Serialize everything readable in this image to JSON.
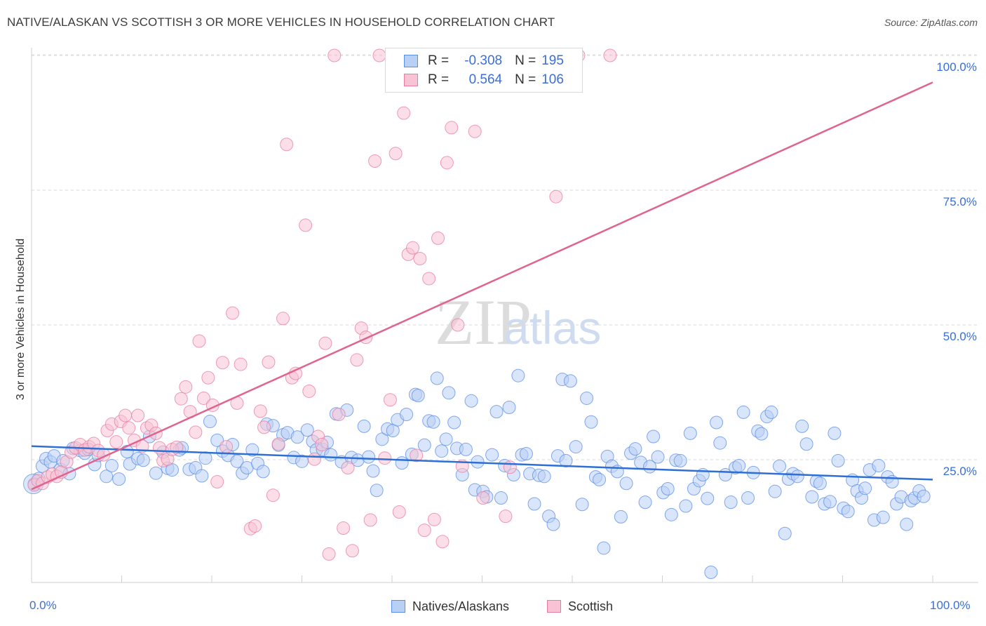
{
  "title": "NATIVE/ALASKAN VS SCOTTISH 3 OR MORE VEHICLES IN HOUSEHOLD CORRELATION CHART",
  "source": "Source: ZipAtlas.com",
  "watermark": {
    "zip": "ZIP",
    "atlas": "atlas"
  },
  "legend": {
    "series": [
      {
        "r_label": "R =",
        "r_value": "-0.308",
        "n_label": "N =",
        "n_value": "195",
        "color": "#5b8ee6",
        "fill": "#b9d0f5"
      },
      {
        "r_label": "R =",
        "r_value": "0.564",
        "n_label": "N =",
        "n_value": "106",
        "color": "#e87ca0",
        "fill": "#f8c3d4"
      }
    ]
  },
  "bottom_legend": [
    {
      "label": "Natives/Alaskans",
      "color": "#5b8ee6",
      "fill": "#b9d0f5"
    },
    {
      "label": "Scottish",
      "color": "#e87ca0",
      "fill": "#f8c3d4"
    }
  ],
  "chart_data": {
    "type": "scatter",
    "title": "NATIVE/ALASKAN VS SCOTTISH 3 OR MORE VEHICLES IN HOUSEHOLD CORRELATION CHART",
    "xlabel": "",
    "ylabel": "3 or more Vehicles in Household",
    "xlim": [
      0,
      100
    ],
    "ylim": [
      0,
      100
    ],
    "x_tick_labels": [
      "0.0%",
      "100.0%"
    ],
    "y_tick_labels": [
      "100.0%",
      "75.0%",
      "50.0%",
      "25.0%"
    ],
    "y_ticks": [
      100,
      75,
      50,
      25
    ],
    "grid": "horizontal dashed",
    "legend_position": "top-center",
    "series": [
      {
        "name": "Natives/Alaskans",
        "color": "#5b8ee6",
        "fill": "#b9d0f5",
        "trend": {
          "x": [
            0,
            100
          ],
          "y": [
            27.5,
            21.3
          ]
        },
        "points": [
          [
            0.3,
            20.5
          ],
          [
            0.8,
            21.5
          ],
          [
            1.2,
            23.8
          ],
          [
            1.6,
            25.2
          ],
          [
            2.1,
            24.6
          ],
          [
            2.5,
            25.7
          ],
          [
            3.2,
            23.2
          ],
          [
            3.5,
            24.8
          ],
          [
            4.2,
            22.4
          ],
          [
            4.6,
            27.1
          ],
          [
            5.4,
            26.7
          ],
          [
            5.9,
            26.2
          ],
          [
            6.3,
            26.9
          ],
          [
            7.0,
            24.1
          ],
          [
            7.4,
            25.8
          ],
          [
            8.3,
            21.9
          ],
          [
            8.9,
            23.9
          ],
          [
            9.7,
            21.4
          ],
          [
            10.6,
            26.5
          ],
          [
            10.9,
            24.2
          ],
          [
            11.8,
            25.2
          ],
          [
            12.4,
            24.9
          ],
          [
            13.1,
            29.3
          ],
          [
            13.8,
            22.5
          ],
          [
            14.6,
            26.4
          ],
          [
            15.1,
            23.4
          ],
          [
            15.6,
            23.1
          ],
          [
            16.4,
            26.8
          ],
          [
            16.7,
            27.2
          ],
          [
            17.5,
            23.2
          ],
          [
            18.2,
            23.5
          ],
          [
            18.9,
            22.0
          ],
          [
            19.3,
            25.3
          ],
          [
            19.8,
            32.1
          ],
          [
            20.6,
            28.6
          ],
          [
            21.2,
            26.6
          ],
          [
            21.8,
            25.8
          ],
          [
            22.3,
            27.8
          ],
          [
            22.8,
            24.7
          ],
          [
            23.4,
            22.5
          ],
          [
            23.9,
            23.5
          ],
          [
            24.5,
            26.8
          ],
          [
            25.1,
            24.3
          ],
          [
            25.7,
            22.8
          ],
          [
            26.1,
            31.6
          ],
          [
            26.8,
            31.3
          ],
          [
            27.4,
            27.7
          ],
          [
            27.9,
            29.6
          ],
          [
            28.4,
            30.0
          ],
          [
            29.1,
            25.4
          ],
          [
            29.5,
            29.2
          ],
          [
            30.0,
            24.7
          ],
          [
            30.6,
            30.5
          ],
          [
            31.2,
            28.4
          ],
          [
            31.6,
            26.8
          ],
          [
            32.3,
            26.9
          ],
          [
            32.8,
            28.2
          ],
          [
            33.2,
            25.9
          ],
          [
            33.8,
            33.5
          ],
          [
            34.4,
            24.6
          ],
          [
            35.0,
            34.2
          ],
          [
            35.5,
            25.4
          ],
          [
            36.2,
            24.9
          ],
          [
            36.9,
            31.2
          ],
          [
            37.4,
            25.5
          ],
          [
            37.9,
            22.9
          ],
          [
            38.3,
            19.3
          ],
          [
            38.9,
            28.8
          ],
          [
            39.5,
            30.7
          ],
          [
            40.1,
            30.4
          ],
          [
            40.6,
            32.4
          ],
          [
            41.1,
            24.4
          ],
          [
            41.6,
            33.4
          ],
          [
            42.2,
            26.0
          ],
          [
            42.6,
            37.1
          ],
          [
            42.9,
            36.9
          ],
          [
            43.6,
            27.7
          ],
          [
            44.1,
            32.2
          ],
          [
            44.6,
            32.0
          ],
          [
            45.0,
            40.1
          ],
          [
            45.5,
            26.6
          ],
          [
            46.0,
            28.8
          ],
          [
            46.3,
            37.4
          ],
          [
            46.9,
            31.9
          ],
          [
            47.2,
            27.1
          ],
          [
            47.8,
            22.2
          ],
          [
            48.2,
            26.9
          ],
          [
            48.8,
            35.9
          ],
          [
            49.2,
            19.4
          ],
          [
            49.5,
            24.6
          ],
          [
            50.1,
            19.1
          ],
          [
            50.5,
            18.1
          ],
          [
            51.1,
            25.9
          ],
          [
            51.6,
            33.9
          ],
          [
            52.1,
            17.9
          ],
          [
            52.5,
            23.9
          ],
          [
            53.0,
            34.7
          ],
          [
            53.5,
            22.2
          ],
          [
            54.0,
            40.6
          ],
          [
            54.4,
            25.9
          ],
          [
            54.9,
            26.1
          ],
          [
            55.3,
            22.4
          ],
          [
            55.8,
            16.8
          ],
          [
            56.3,
            22.1
          ],
          [
            56.9,
            21.9
          ],
          [
            57.4,
            14.5
          ],
          [
            57.9,
            13.0
          ],
          [
            58.4,
            25.7
          ],
          [
            58.9,
            39.9
          ],
          [
            59.3,
            24.8
          ],
          [
            59.8,
            39.6
          ],
          [
            60.4,
            27.4
          ],
          [
            61.1,
            16.7
          ],
          [
            61.6,
            36.4
          ],
          [
            62.1,
            32.0
          ],
          [
            62.6,
            21.8
          ],
          [
            63.0,
            21.3
          ],
          [
            63.5,
            8.6
          ],
          [
            63.9,
            25.6
          ],
          [
            64.4,
            23.8
          ],
          [
            65.0,
            22.8
          ],
          [
            65.4,
            14.4
          ],
          [
            66.0,
            20.6
          ],
          [
            66.5,
            26.2
          ],
          [
            67.0,
            27.0
          ],
          [
            67.6,
            24.5
          ],
          [
            68.1,
            17.1
          ],
          [
            68.6,
            23.7
          ],
          [
            69.0,
            29.3
          ],
          [
            69.5,
            25.5
          ],
          [
            70.1,
            18.9
          ],
          [
            70.6,
            19.6
          ],
          [
            71.0,
            14.8
          ],
          [
            71.5,
            24.9
          ],
          [
            72.0,
            24.8
          ],
          [
            72.6,
            16.4
          ],
          [
            73.1,
            29.9
          ],
          [
            73.5,
            19.6
          ],
          [
            74.1,
            21.1
          ],
          [
            74.5,
            22.2
          ],
          [
            75.0,
            17.8
          ],
          [
            75.4,
            4.1
          ],
          [
            76.0,
            31.9
          ],
          [
            76.4,
            28.1
          ],
          [
            77.0,
            22.2
          ],
          [
            77.6,
            17.1
          ],
          [
            78.1,
            23.5
          ],
          [
            78.5,
            23.9
          ],
          [
            79.0,
            33.8
          ],
          [
            79.5,
            17.9
          ],
          [
            80.1,
            22.6
          ],
          [
            80.6,
            30.3
          ],
          [
            81.0,
            29.8
          ],
          [
            81.6,
            33.0
          ],
          [
            82.1,
            33.8
          ],
          [
            82.5,
            19.1
          ],
          [
            83.0,
            23.8
          ],
          [
            83.6,
            11.3
          ],
          [
            84.0,
            21.4
          ],
          [
            84.5,
            22.4
          ],
          [
            85.0,
            21.9
          ],
          [
            85.5,
            31.2
          ],
          [
            86.0,
            27.9
          ],
          [
            86.6,
            18.1
          ],
          [
            87.1,
            21.0
          ],
          [
            87.5,
            20.6
          ],
          [
            88.0,
            16.8
          ],
          [
            88.6,
            17.2
          ],
          [
            89.1,
            29.9
          ],
          [
            89.5,
            24.8
          ],
          [
            90.1,
            16.0
          ],
          [
            90.6,
            15.4
          ],
          [
            91.1,
            21.2
          ],
          [
            91.6,
            19.2
          ],
          [
            92.1,
            17.9
          ],
          [
            92.5,
            19.7
          ],
          [
            93.0,
            23.1
          ],
          [
            93.5,
            13.8
          ],
          [
            94.0,
            23.9
          ],
          [
            94.5,
            14.3
          ],
          [
            95.0,
            21.8
          ],
          [
            95.5,
            20.9
          ],
          [
            96.0,
            16.8
          ],
          [
            96.5,
            18.1
          ],
          [
            97.1,
            13.0
          ],
          [
            97.6,
            17.4
          ],
          [
            98.0,
            17.9
          ],
          [
            98.5,
            19.2
          ],
          [
            99.0,
            18.2
          ]
        ]
      },
      {
        "name": "Scottish",
        "color": "#e87ca0",
        "fill": "#f8c3d4",
        "trend": {
          "x": [
            0,
            100
          ],
          "y": [
            19.5,
            95.0
          ]
        },
        "points": [
          [
            0.3,
            20.3
          ],
          [
            0.7,
            21.1
          ],
          [
            1.2,
            20.6
          ],
          [
            1.8,
            21.8
          ],
          [
            2.3,
            22.3
          ],
          [
            2.8,
            21.9
          ],
          [
            3.3,
            22.7
          ],
          [
            3.9,
            24.6
          ],
          [
            4.4,
            26.4
          ],
          [
            4.9,
            27.2
          ],
          [
            5.4,
            27.8
          ],
          [
            5.9,
            26.8
          ],
          [
            6.4,
            27.4
          ],
          [
            6.9,
            28.0
          ],
          [
            7.4,
            26.7
          ],
          [
            8.0,
            25.9
          ],
          [
            8.4,
            30.4
          ],
          [
            8.9,
            31.6
          ],
          [
            9.4,
            28.3
          ],
          [
            9.9,
            32.1
          ],
          [
            10.4,
            33.2
          ],
          [
            10.8,
            30.9
          ],
          [
            11.4,
            28.6
          ],
          [
            11.8,
            33.2
          ],
          [
            12.3,
            27.5
          ],
          [
            12.8,
            30.9
          ],
          [
            13.3,
            31.4
          ],
          [
            13.8,
            29.9
          ],
          [
            14.2,
            27.2
          ],
          [
            14.6,
            24.8
          ],
          [
            15.1,
            25.1
          ],
          [
            15.6,
            26.9
          ],
          [
            16.1,
            27.3
          ],
          [
            16.6,
            36.3
          ],
          [
            17.1,
            38.5
          ],
          [
            17.6,
            33.9
          ],
          [
            18.2,
            30.1
          ],
          [
            18.6,
            47.0
          ],
          [
            19.1,
            36.4
          ],
          [
            19.6,
            40.2
          ],
          [
            20.1,
            35.1
          ],
          [
            20.6,
            20.9
          ],
          [
            21.2,
            43.0
          ],
          [
            21.6,
            27.4
          ],
          [
            22.3,
            52.2
          ],
          [
            22.8,
            35.5
          ],
          [
            23.2,
            42.7
          ],
          [
            24.3,
            12.2
          ],
          [
            24.8,
            12.7
          ],
          [
            25.4,
            34.0
          ],
          [
            25.8,
            31.0
          ],
          [
            26.3,
            43.1
          ],
          [
            26.8,
            18.4
          ],
          [
            27.4,
            27.9
          ],
          [
            27.9,
            51.2
          ],
          [
            28.3,
            83.5
          ],
          [
            28.9,
            40.2
          ],
          [
            29.3,
            41.0
          ],
          [
            30.4,
            68.5
          ],
          [
            30.8,
            37.7
          ],
          [
            31.4,
            25.1
          ],
          [
            31.8,
            29.3
          ],
          [
            32.2,
            27.8
          ],
          [
            32.6,
            46.6
          ],
          [
            33.0,
            7.5
          ],
          [
            33.6,
            100.0
          ],
          [
            34.1,
            33.4
          ],
          [
            34.6,
            12.3
          ],
          [
            35.1,
            23.5
          ],
          [
            35.6,
            8.1
          ],
          [
            36.1,
            43.5
          ],
          [
            36.6,
            49.4
          ],
          [
            37.1,
            47.7
          ],
          [
            37.6,
            13.8
          ],
          [
            38.1,
            80.4
          ],
          [
            38.6,
            100.0
          ],
          [
            39.2,
            25.3
          ],
          [
            39.8,
            36.1
          ],
          [
            40.4,
            81.8
          ],
          [
            40.8,
            15.3
          ],
          [
            41.3,
            89.3
          ],
          [
            41.8,
            63.1
          ],
          [
            42.3,
            64.3
          ],
          [
            42.7,
            25.8
          ],
          [
            43.1,
            62.3
          ],
          [
            43.6,
            11.9
          ],
          [
            44.1,
            58.6
          ],
          [
            44.7,
            13.9
          ],
          [
            45.1,
            66.1
          ],
          [
            45.6,
            9.8
          ],
          [
            46.1,
            80.1
          ],
          [
            46.6,
            86.6
          ],
          [
            47.3,
            50.0
          ],
          [
            47.8,
            23.8
          ],
          [
            48.2,
            100.0
          ],
          [
            49.2,
            85.9
          ],
          [
            50.1,
            17.9
          ],
          [
            51.2,
            100.0
          ],
          [
            52.6,
            14.5
          ],
          [
            53.1,
            23.6
          ],
          [
            57.7,
            100.0
          ],
          [
            58.2,
            73.8
          ],
          [
            60.7,
            100.0
          ],
          [
            64.2,
            100.0
          ]
        ]
      }
    ]
  }
}
